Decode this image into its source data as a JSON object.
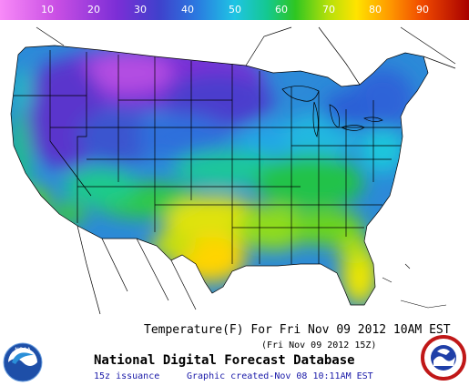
{
  "scale": {
    "labels": [
      "10",
      "20",
      "30",
      "40",
      "50",
      "60",
      "70",
      "80",
      "90"
    ],
    "colors": [
      "#f57df5",
      "#d24ee0",
      "#8f2fd8",
      "#4a37c8",
      "#2b63d8",
      "#23a8ea",
      "#1bd6d6",
      "#12c98a",
      "#22c22a",
      "#8fdc1a",
      "#e8e800",
      "#ffc400",
      "#ff8a00",
      "#ee4a00",
      "#cc1400",
      "#a80000"
    ]
  },
  "header": {
    "title": "Temperature(F) For Fri Nov 09 2012 10AM EST",
    "subtitle": "(Fri Nov 09 2012 15Z)"
  },
  "footer": {
    "database": "National Digital Forecast Database",
    "issuance": "15z issuance",
    "created": "Graphic created-Nov 08 10:11AM EST"
  },
  "logos": {
    "left": "NOAA",
    "right": "NATIONAL WEATHER SERVICE"
  }
}
